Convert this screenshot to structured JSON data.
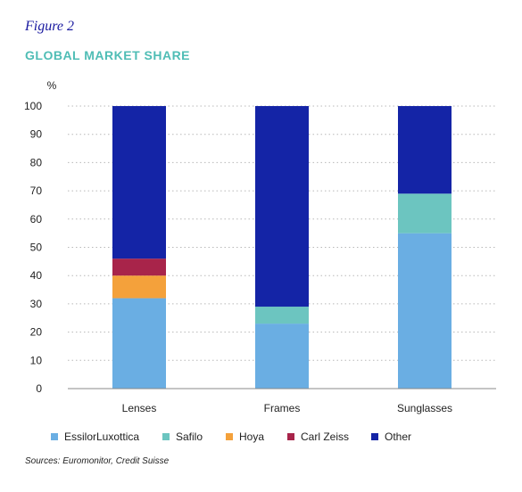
{
  "figure_label": "Figure 2",
  "title": "GLOBAL MARKET SHARE",
  "source": "Sources: Euromonitor, Credit Suisse",
  "chart_data": {
    "type": "bar",
    "stacked": true,
    "title": "GLOBAL MARKET SHARE",
    "xlabel": "",
    "ylabel": "%",
    "ylim": [
      0,
      100
    ],
    "yticks": [
      0,
      10,
      20,
      30,
      40,
      50,
      60,
      70,
      80,
      90,
      100
    ],
    "grid": true,
    "legend_position": "bottom",
    "categories": [
      "Lenses",
      "Frames",
      "Sunglasses"
    ],
    "series": [
      {
        "name": "EssilorLuxottica",
        "color": "#6aaee3",
        "values": [
          32,
          23,
          55
        ]
      },
      {
        "name": "Safilo",
        "color": "#6cc5c0",
        "values": [
          0,
          6,
          14
        ]
      },
      {
        "name": "Hoya",
        "color": "#f4a13b",
        "values": [
          8,
          0,
          0
        ]
      },
      {
        "name": "Carl Zeiss",
        "color": "#a8244a",
        "values": [
          6,
          0,
          0
        ]
      },
      {
        "name": "Other",
        "color": "#1424a6",
        "values": [
          54,
          71,
          31
        ]
      }
    ]
  }
}
